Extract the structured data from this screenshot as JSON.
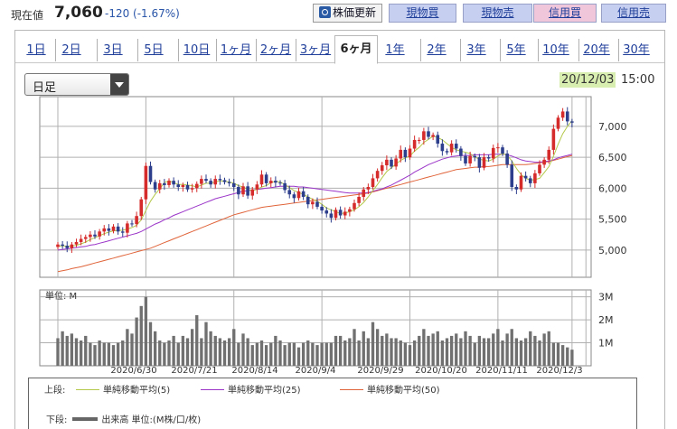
{
  "header": {
    "price_label": "現在値",
    "price": "7,060",
    "change": "-120 (-1.67%)",
    "buttons": {
      "update": "株価更新",
      "genbutsu_buy": "現物買",
      "genbutsu_sell": "現物売",
      "shinyo_buy": "信用買",
      "shinyo_sell": "信用売"
    }
  },
  "tabs": [
    "1日",
    "2日",
    "3日",
    "5日",
    "10日",
    "1ヶ月",
    "2ヶ月",
    "3ヶ月",
    "6ヶ月",
    "1年",
    "2年",
    "3年",
    "5年",
    "10年",
    "20年",
    "30年"
  ],
  "active_tab": "6ヶ月",
  "period_select": {
    "value": "日足"
  },
  "datetime": {
    "date": "20/12/03",
    "time": "15:00"
  },
  "volume_unit_label": "単位: M",
  "legend": {
    "upper_label": "上段:",
    "ma5": "単純移動平均(5)",
    "ma25": "単純移動平均(25)",
    "ma50": "単純移動平均(50)",
    "lower_label": "下段:",
    "volume": "出来高 単位:(M株/口/枚)"
  },
  "colors": {
    "up": "#d62b2b",
    "down": "#2d3e8c",
    "ma5": "#b4c84a",
    "ma25": "#9b35c8",
    "ma50": "#e0643a",
    "volume": "#707070",
    "date_highlight": "#d8edb0"
  },
  "chart_data": {
    "type": "candlestick",
    "x_tick_labels": [
      "2020/6/30",
      "2020/7/21",
      "2020/8/14",
      "2020/9/4",
      "2020/9/29",
      "2020/10/20",
      "2020/11/11",
      "2020/12/3"
    ],
    "y_ticks": [
      5000,
      5500,
      6000,
      6500,
      7000
    ],
    "y_tick_labels": [
      "5,000",
      "5,500",
      "6,000",
      "6,500",
      "7,000"
    ],
    "ylim": [
      4560,
      7480
    ],
    "volume_ticks": [
      1,
      2,
      3
    ],
    "volume_tick_labels": [
      "1M",
      "2M",
      "3M"
    ],
    "volume_ylim": [
      0,
      3.3
    ],
    "close": [
      5090,
      5070,
      5030,
      5090,
      5130,
      5180,
      5210,
      5250,
      5220,
      5300,
      5350,
      5310,
      5380,
      5300,
      5280,
      5430,
      5420,
      5550,
      5820,
      6360,
      6100,
      5980,
      6080,
      6050,
      6120,
      6060,
      6020,
      6050,
      5980,
      6000,
      6070,
      6150,
      6120,
      6060,
      6150,
      6130,
      6100,
      6080,
      6020,
      5900,
      6030,
      5880,
      5980,
      6060,
      6220,
      6080,
      6120,
      6090,
      6080,
      5970,
      5900,
      5840,
      5950,
      5860,
      5740,
      5780,
      5700,
      5640,
      5590,
      5520,
      5650,
      5560,
      5620,
      5660,
      5760,
      5860,
      5980,
      6020,
      6160,
      6280,
      6370,
      6460,
      6350,
      6480,
      6620,
      6500,
      6640,
      6780,
      6780,
      6920,
      6830,
      6860,
      6720,
      6600,
      6580,
      6720,
      6640,
      6520,
      6400,
      6520,
      6500,
      6330,
      6500,
      6480,
      6650,
      6660,
      6560,
      6380,
      6020,
      5980,
      6200,
      6160,
      6080,
      6240,
      6380,
      6460,
      6620,
      6960,
      7140,
      7240,
      7080,
      7060
    ],
    "ma5": [
      5060,
      5070,
      5060,
      5065,
      5075,
      5100,
      5130,
      5170,
      5200,
      5230,
      5265,
      5290,
      5310,
      5315,
      5320,
      5340,
      5365,
      5400,
      5490,
      5640,
      5790,
      5900,
      5990,
      6090,
      6120,
      6090,
      6060,
      6060,
      6050,
      6040,
      6020,
      6050,
      6080,
      6080,
      6100,
      6120,
      6110,
      6100,
      6080,
      6040,
      6020,
      5980,
      5960,
      5980,
      6020,
      6040,
      6090,
      6110,
      6100,
      6060,
      6010,
      5960,
      5930,
      5900,
      5860,
      5820,
      5790,
      5740,
      5680,
      5650,
      5620,
      5590,
      5600,
      5620,
      5650,
      5700,
      5770,
      5860,
      5960,
      6060,
      6170,
      6270,
      6330,
      6390,
      6450,
      6490,
      6520,
      6600,
      6660,
      6740,
      6790,
      6840,
      6820,
      6780,
      6720,
      6660,
      6620,
      6600,
      6580,
      6560,
      6500,
      6470,
      6450,
      6440,
      6470,
      6520,
      6560,
      6530,
      6440,
      6320,
      6220,
      6160,
      6130,
      6140,
      6160,
      6250,
      6350,
      6520,
      6710,
      6880,
      7000,
      7090
    ],
    "ma25": [
      5000,
      5010,
      5020,
      5030,
      5040,
      5050,
      5060,
      5080,
      5090,
      5110,
      5130,
      5150,
      5170,
      5190,
      5210,
      5230,
      5250,
      5270,
      5300,
      5340,
      5380,
      5420,
      5450,
      5490,
      5520,
      5560,
      5590,
      5620,
      5650,
      5680,
      5710,
      5740,
      5770,
      5800,
      5830,
      5850,
      5870,
      5890,
      5910,
      5930,
      5950,
      5960,
      5970,
      5980,
      5990,
      6000,
      6010,
      6020,
      6030,
      6030,
      6030,
      6030,
      6020,
      6020,
      6010,
      6000,
      5990,
      5980,
      5970,
      5960,
      5950,
      5940,
      5930,
      5920,
      5920,
      5920,
      5920,
      5930,
      5950,
      5970,
      5990,
      6020,
      6050,
      6090,
      6130,
      6170,
      6210,
      6260,
      6300,
      6340,
      6380,
      6410,
      6440,
      6470,
      6490,
      6510,
      6520,
      6530,
      6530,
      6530,
      6540,
      6540,
      6540,
      6540,
      6550,
      6550,
      6550,
      6540,
      6520,
      6490,
      6460,
      6440,
      6430,
      6420,
      6420,
      6430,
      6440,
      6460,
      6490,
      6510,
      6530,
      6550
    ],
    "ma50": [
      4650,
      4665,
      4680,
      4700,
      4715,
      4730,
      4750,
      4770,
      4790,
      4810,
      4830,
      4850,
      4870,
      4890,
      4910,
      4930,
      4950,
      4970,
      4990,
      5010,
      5030,
      5060,
      5090,
      5120,
      5150,
      5180,
      5210,
      5240,
      5270,
      5300,
      5330,
      5360,
      5390,
      5420,
      5450,
      5480,
      5510,
      5540,
      5570,
      5590,
      5610,
      5630,
      5650,
      5670,
      5690,
      5700,
      5710,
      5720,
      5730,
      5740,
      5750,
      5760,
      5770,
      5780,
      5790,
      5800,
      5810,
      5820,
      5830,
      5840,
      5850,
      5860,
      5870,
      5880,
      5890,
      5900,
      5910,
      5920,
      5940,
      5960,
      5980,
      6000,
      6020,
      6040,
      6060,
      6080,
      6100,
      6120,
      6140,
      6160,
      6180,
      6200,
      6220,
      6240,
      6260,
      6280,
      6300,
      6310,
      6320,
      6330,
      6340,
      6340,
      6350,
      6350,
      6360,
      6370,
      6380,
      6380,
      6380,
      6380,
      6380,
      6380,
      6390,
      6400,
      6410,
      6420,
      6430,
      6450,
      6470,
      6490,
      6510,
      6530
    ],
    "volume": [
      1.2,
      1.5,
      1.3,
      1.4,
      1.2,
      1.1,
      1.3,
      1.0,
      0.9,
      1.1,
      1.0,
      1.0,
      0.9,
      1.0,
      1.1,
      1.6,
      1.4,
      2.1,
      2.6,
      3.0,
      1.9,
      1.5,
      1.1,
      1.0,
      1.1,
      1.3,
      1.0,
      1.3,
      1.2,
      1.6,
      2.2,
      1.2,
      1.9,
      1.5,
      1.3,
      1.2,
      1.1,
      1.2,
      1.6,
      1.0,
      1.4,
      1.2,
      0.9,
      1.0,
      1.1,
      0.9,
      1.0,
      1.3,
      1.1,
      0.9,
      1.0,
      1.0,
      0.8,
      1.0,
      1.1,
      1.0,
      0.9,
      1.0,
      1.0,
      1.0,
      1.3,
      1.3,
      1.1,
      1.2,
      1.6,
      1.1,
      1.5,
      1.2,
      1.9,
      1.6,
      1.3,
      1.4,
      1.2,
      1.2,
      1.1,
      1.0,
      0.9,
      1.1,
      1.3,
      1.6,
      1.3,
      1.4,
      1.5,
      1.1,
      1.2,
      1.3,
      1.4,
      1.2,
      1.5,
      1.3,
      1.0,
      1.3,
      1.2,
      1.2,
      1.4,
      1.6,
      1.1,
      1.4,
      1.6,
      1.2,
      1.1,
      1.2,
      1.5,
      1.3,
      1.1,
      1.4,
      1.5,
      1.0,
      1.0,
      0.9,
      0.8,
      0.7
    ]
  }
}
